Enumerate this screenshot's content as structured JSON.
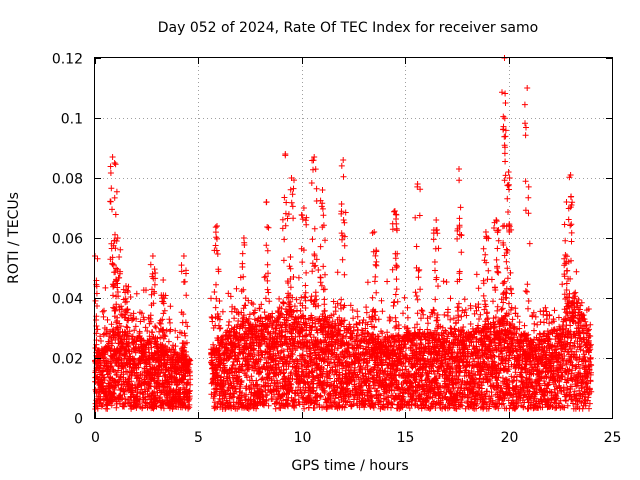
{
  "chart_data": {
    "type": "scatter",
    "title": "Day 052 of 2024, Rate Of TEC Index for receiver samo",
    "xlabel": "GPS time / hours",
    "ylabel": "ROTI / TECUs",
    "xlim": [
      0,
      25
    ],
    "ylim": [
      0,
      0.12
    ],
    "xticks": [
      "0",
      "5",
      "10",
      "15",
      "20",
      "25"
    ],
    "yticks": [
      "0",
      "0.02",
      "0.04",
      "0.06",
      "0.08",
      "0.1",
      "0.12"
    ],
    "grid": true,
    "marker": "plus",
    "color": "#ff0000",
    "gap": [
      4.6,
      5.6
    ],
    "series": [
      {
        "baseline_profile": [
          [
            0.0,
            0.015
          ],
          [
            0.5,
            0.016
          ],
          [
            1.0,
            0.02
          ],
          [
            2.0,
            0.018
          ],
          [
            3.0,
            0.017
          ],
          [
            4.0,
            0.015
          ],
          [
            4.6,
            0.014
          ],
          [
            5.6,
            0.016
          ],
          [
            6.5,
            0.02
          ],
          [
            8.0,
            0.022
          ],
          [
            9.5,
            0.024
          ],
          [
            11.0,
            0.022
          ],
          [
            12.5,
            0.02
          ],
          [
            14.0,
            0.018
          ],
          [
            15.5,
            0.019
          ],
          [
            17.0,
            0.019
          ],
          [
            18.5,
            0.02
          ],
          [
            19.8,
            0.022
          ],
          [
            21.0,
            0.018
          ],
          [
            22.5,
            0.02
          ],
          [
            23.2,
            0.028
          ],
          [
            24.0,
            0.018
          ]
        ],
        "peaks": [
          {
            "x": 0.0,
            "y": 0.054
          },
          {
            "x": 0.85,
            "y": 0.087
          },
          {
            "x": 0.95,
            "y": 0.085
          },
          {
            "x": 1.1,
            "y": 0.06
          },
          {
            "x": 1.5,
            "y": 0.044
          },
          {
            "x": 2.8,
            "y": 0.054
          },
          {
            "x": 3.3,
            "y": 0.046
          },
          {
            "x": 4.3,
            "y": 0.054
          },
          {
            "x": 5.9,
            "y": 0.064
          },
          {
            "x": 7.2,
            "y": 0.06
          },
          {
            "x": 8.3,
            "y": 0.072
          },
          {
            "x": 9.2,
            "y": 0.088
          },
          {
            "x": 9.5,
            "y": 0.08
          },
          {
            "x": 10.1,
            "y": 0.07
          },
          {
            "x": 10.6,
            "y": 0.087
          },
          {
            "x": 11.0,
            "y": 0.076
          },
          {
            "x": 12.0,
            "y": 0.086
          },
          {
            "x": 13.5,
            "y": 0.062
          },
          {
            "x": 14.5,
            "y": 0.069
          },
          {
            "x": 15.6,
            "y": 0.078
          },
          {
            "x": 16.5,
            "y": 0.066
          },
          {
            "x": 17.6,
            "y": 0.083
          },
          {
            "x": 18.9,
            "y": 0.062
          },
          {
            "x": 19.4,
            "y": 0.066
          },
          {
            "x": 19.8,
            "y": 0.12
          },
          {
            "x": 19.85,
            "y": 0.105
          },
          {
            "x": 20.0,
            "y": 0.082
          },
          {
            "x": 20.9,
            "y": 0.11
          },
          {
            "x": 22.8,
            "y": 0.072
          },
          {
            "x": 23.0,
            "y": 0.081
          }
        ]
      }
    ]
  }
}
